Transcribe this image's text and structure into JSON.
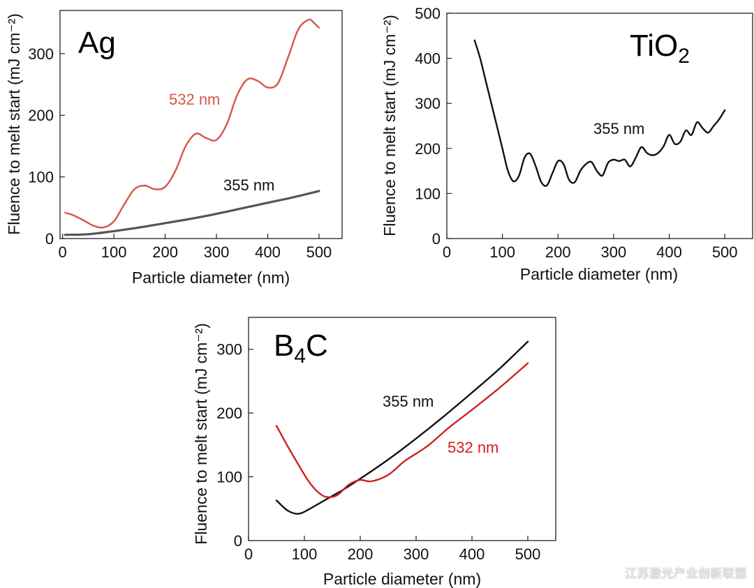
{
  "watermark": "江苏激光产业创新联盟",
  "chart_data": [
    {
      "type": "line",
      "title": "Ag",
      "xlabel": "Particle diameter (nm)",
      "ylabel": "Fluence to melt start (mJ cm⁻²)",
      "xlim": [
        -5,
        545
      ],
      "ylim": [
        0,
        370
      ],
      "xticks": [
        0,
        100,
        200,
        300,
        400,
        500
      ],
      "yticks": [
        0,
        100,
        200,
        300
      ],
      "series": [
        {
          "name": "532 nm",
          "color": "#d9534a",
          "x": [
            5,
            20,
            40,
            60,
            80,
            100,
            120,
            140,
            160,
            180,
            200,
            220,
            240,
            260,
            280,
            300,
            320,
            340,
            360,
            380,
            400,
            420,
            440,
            460,
            480,
            490,
            500
          ],
          "y": [
            42,
            38,
            30,
            21,
            18,
            28,
            55,
            80,
            86,
            80,
            84,
            110,
            150,
            170,
            163,
            160,
            185,
            232,
            258,
            256,
            245,
            252,
            295,
            340,
            355,
            350,
            342
          ]
        },
        {
          "name": "355 nm",
          "color": "#555555",
          "x": [
            5,
            50,
            100,
            150,
            200,
            250,
            300,
            350,
            400,
            450,
            500
          ],
          "y": [
            6,
            7,
            12,
            18,
            25,
            32,
            40,
            49,
            58,
            67,
            77
          ]
        }
      ]
    },
    {
      "type": "line",
      "title": "TiO",
      "title_sub": "2",
      "xlabel": "Particle diameter (nm)",
      "ylabel": "Fluence to melt start (mJ cm⁻²)",
      "xlim": [
        0,
        550
      ],
      "ylim": [
        0,
        500
      ],
      "xticks": [
        0,
        100,
        200,
        300,
        400,
        500
      ],
      "yticks": [
        0,
        100,
        200,
        300,
        400,
        500
      ],
      "series": [
        {
          "name": "355 nm",
          "color": "#111111",
          "x": [
            50,
            60,
            70,
            80,
            90,
            100,
            110,
            120,
            130,
            140,
            150,
            160,
            170,
            180,
            190,
            200,
            210,
            220,
            230,
            240,
            250,
            260,
            270,
            280,
            290,
            300,
            310,
            320,
            330,
            340,
            350,
            360,
            370,
            380,
            390,
            400,
            410,
            420,
            430,
            440,
            450,
            460,
            470,
            480,
            490,
            500
          ],
          "y": [
            440,
            400,
            350,
            300,
            250,
            200,
            150,
            127,
            140,
            180,
            188,
            160,
            125,
            118,
            145,
            172,
            165,
            130,
            125,
            150,
            165,
            170,
            150,
            140,
            168,
            175,
            172,
            175,
            160,
            180,
            203,
            190,
            185,
            190,
            205,
            230,
            210,
            215,
            240,
            230,
            258,
            245,
            235,
            250,
            265,
            285
          ]
        }
      ]
    },
    {
      "type": "line",
      "title": "B",
      "title_sub": "4",
      "title_tail": "C",
      "xlabel": "Particle diameter (nm)",
      "ylabel": "Fluence to melt start (mJ cm⁻²)",
      "xlim": [
        0,
        550
      ],
      "ylim": [
        0,
        350
      ],
      "xticks": [
        0,
        100,
        200,
        300,
        400,
        500
      ],
      "yticks": [
        0,
        100,
        200,
        300
      ],
      "series": [
        {
          "name": "355 nm",
          "color": "#111111",
          "x": [
            50,
            70,
            90,
            110,
            130,
            150,
            170,
            200,
            250,
            300,
            350,
            400,
            450,
            500
          ],
          "y": [
            63,
            47,
            42,
            50,
            60,
            70,
            80,
            97,
            127,
            160,
            195,
            232,
            270,
            312
          ]
        },
        {
          "name": "532 nm",
          "color": "#cc2222",
          "x": [
            50,
            70,
            90,
            110,
            130,
            145,
            160,
            180,
            200,
            220,
            250,
            280,
            320,
            360,
            400,
            450,
            500
          ],
          "y": [
            180,
            148,
            118,
            90,
            72,
            68,
            72,
            88,
            95,
            93,
            103,
            125,
            148,
            178,
            205,
            240,
            278
          ]
        }
      ]
    }
  ]
}
